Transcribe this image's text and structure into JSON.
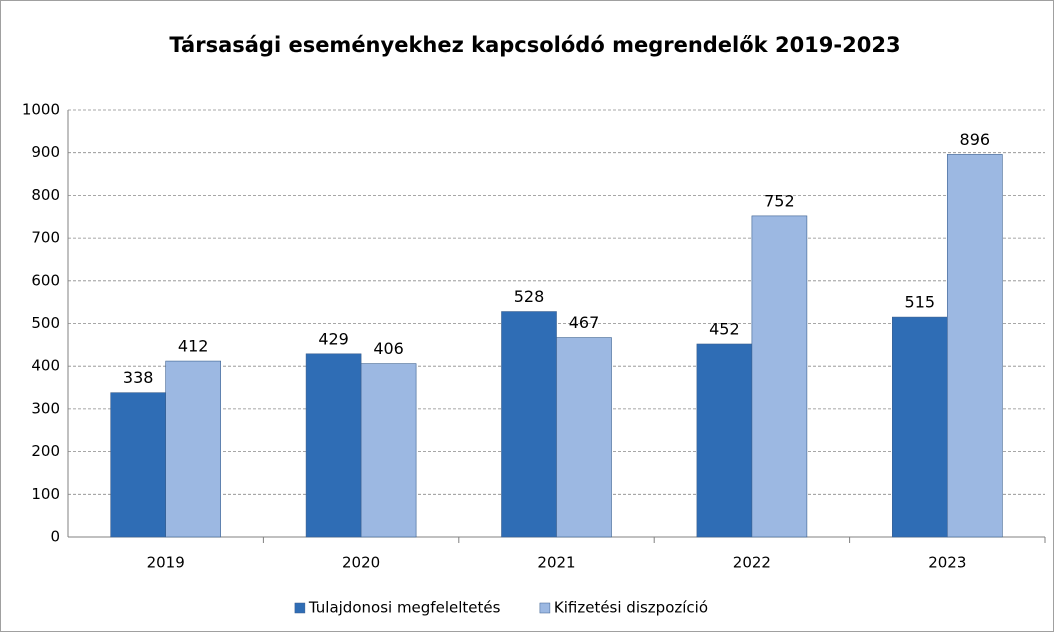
{
  "chart_data": {
    "type": "bar",
    "title": "Társasági eseményekhez kapcsolódó megrendelők 2019-2023",
    "categories": [
      "2019",
      "2020",
      "2021",
      "2022",
      "2023"
    ],
    "series": [
      {
        "name": "Tulajdonosi megfeleltetés",
        "color": "#2f6db5",
        "values": [
          338,
          429,
          528,
          452,
          515
        ]
      },
      {
        "name": "Kifizetési diszpozíció",
        "color": "#9cb8e2",
        "values": [
          412,
          406,
          467,
          752,
          896
        ]
      }
    ],
    "ylim": [
      0,
      1000
    ],
    "yticks": [
      0,
      100,
      200,
      300,
      400,
      500,
      600,
      700,
      800,
      900,
      1000
    ],
    "grid": true,
    "legend": "bottom"
  }
}
